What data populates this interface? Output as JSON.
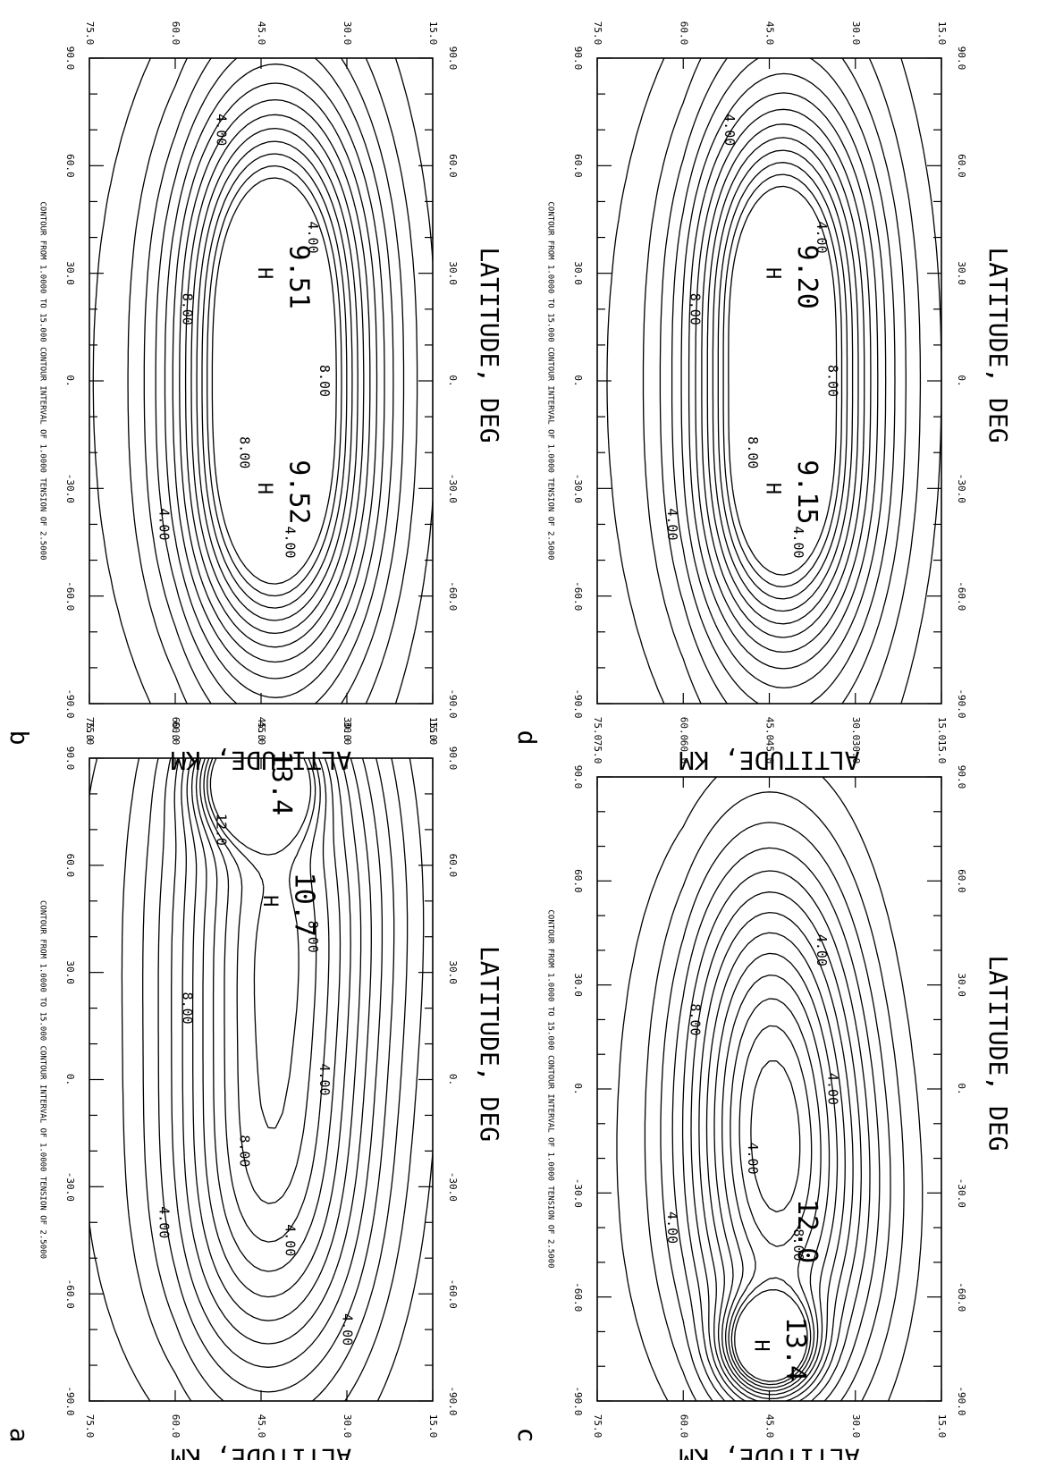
{
  "figure": {
    "background": "#ffffff",
    "ink": "#000000",
    "rotation": "landscape rotated 90 degrees clockwise"
  },
  "chart_data": [
    {
      "type": "contour",
      "panel_label": "a",
      "header": {
        "contour_from": "CONTOUR FROM",
        "from_value": "1.0000",
        "to": "TO",
        "to_value": "15.000",
        "interval": "CONTOUR INTERVAL OF",
        "interval_value": "1.0000",
        "tension": "TENSION OF",
        "tension_value": "2.5000"
      },
      "xlabel": "LATITUDE, DEG",
      "ylabel": "ALTITUDE, KM",
      "x_ticks": [
        "-90.0",
        "-60.0",
        "-30.0",
        "0.",
        "30.0",
        "60.0",
        "90.0"
      ],
      "y_ticks": [
        "75.0",
        "60.0",
        "45.0",
        "30.0",
        "15.0"
      ],
      "xlim": [
        -90,
        90
      ],
      "ylim": [
        15,
        75
      ],
      "contour_labels": [
        "4.00",
        "8.00",
        "8.00",
        "4.00",
        "8.00",
        "4.00",
        "12.0",
        "4.00"
      ],
      "peak_labels": [
        "10.7",
        "13.4"
      ],
      "high_markers": [
        "H"
      ]
    },
    {
      "type": "contour",
      "panel_label": "b",
      "header": {
        "contour_from": "CONTOUR FROM",
        "from_value": "1.0000",
        "to": "TO",
        "to_value": "15.000",
        "interval": "CONTOUR INTERVAL OF",
        "interval_value": "1.0000",
        "tension": "TENSION OF",
        "tension_value": "2.5000"
      },
      "xlabel": "LATITUDE, DEG",
      "ylabel": "ALTITUDE, KM",
      "x_ticks": [
        "-90.0",
        "-60.0",
        "-30.0",
        "0.",
        "30.0",
        "60.0",
        "90.0"
      ],
      "y_ticks": [
        "75.0",
        "60.0",
        "45.0",
        "30.0",
        "15.0"
      ],
      "xlim": [
        -90,
        90
      ],
      "ylim": [
        15,
        75
      ],
      "contour_labels": [
        "4.00",
        "8.00",
        "8.00",
        "4.00",
        "4.00",
        "8.00",
        "4.00"
      ],
      "peak_labels": [
        "9.52",
        "9.51"
      ],
      "high_markers": [
        "H",
        "H"
      ]
    },
    {
      "type": "contour",
      "panel_label": "c",
      "header": {
        "contour_from": "CONTOUR FROM",
        "from_value": "1.0000",
        "to": "TO",
        "to_value": "15.000",
        "interval": "CONTOUR INTERVAL OF",
        "interval_value": "1.0000",
        "tension": "TENSION OF",
        "tension_value": "2.5000"
      },
      "xlabel": "LATITUDE, DEG",
      "ylabel": "ALTITUDE, KM",
      "x_ticks": [
        "-90.0",
        "-60.0",
        "-30.0",
        "0.",
        "30.0",
        "60.0",
        "90.0"
      ],
      "y_ticks": [
        "75.0",
        "60.0",
        "45.0",
        "30.0",
        "15.0"
      ],
      "xlim": [
        -90,
        90
      ],
      "ylim": [
        15,
        75
      ],
      "contour_labels": [
        "4.00",
        "8.00",
        "4.00",
        "8.00",
        "4.00",
        "4.00"
      ],
      "peak_labels": [
        "13.4",
        "12.0"
      ],
      "high_markers": [
        "H"
      ]
    },
    {
      "type": "contour",
      "panel_label": "d",
      "header": {
        "contour_from": "CONTOUR FROM",
        "from_value": "1.0000",
        "to": "TO",
        "to_value": "15.000",
        "interval": "CONTOUR INTERVAL OF",
        "interval_value": "1.0000",
        "tension": "TENSION OF",
        "tension_value": "2.5000"
      },
      "xlabel": "LATITUDE, DEG",
      "ylabel": "ALTITUDE, KM",
      "x_ticks": [
        "-90.0",
        "-60.0",
        "-30.0",
        "0.",
        "30.0",
        "60.0",
        "90.0"
      ],
      "y_ticks": [
        "75.0",
        "60.0",
        "45.0",
        "30.0",
        "15.0"
      ],
      "xlim": [
        -90,
        90
      ],
      "ylim": [
        15,
        75
      ],
      "contour_labels": [
        "4.00",
        "8.00",
        "8.00",
        "4.00",
        "4.00",
        "8.00",
        "4.00"
      ],
      "peak_labels": [
        "9.15",
        "9.20"
      ],
      "high_markers": [
        "H",
        "H"
      ]
    }
  ]
}
